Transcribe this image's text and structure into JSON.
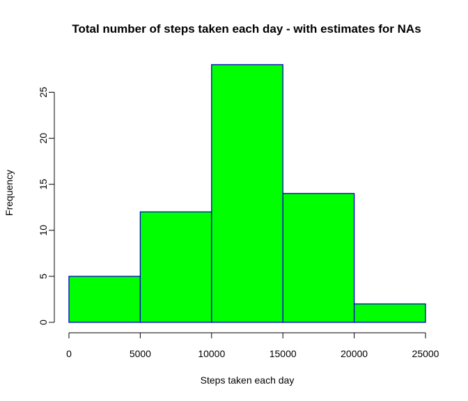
{
  "chart_data": {
    "type": "bar",
    "title": "Total number of steps taken each day - with estimates for NAs",
    "xlabel": "Steps taken each day",
    "ylabel": "Frequency",
    "bins": [
      {
        "from": 0,
        "to": 5000,
        "count": 5
      },
      {
        "from": 5000,
        "to": 10000,
        "count": 12
      },
      {
        "from": 10000,
        "to": 15000,
        "count": 28
      },
      {
        "from": 15000,
        "to": 20000,
        "count": 14
      },
      {
        "from": 20000,
        "to": 25000,
        "count": 2
      }
    ],
    "xlim": [
      0,
      25000
    ],
    "ylim": [
      0,
      28
    ],
    "x_ticks": [
      "0",
      "5000",
      "10000",
      "15000",
      "20000",
      "25000"
    ],
    "y_ticks": [
      "0",
      "5",
      "10",
      "15",
      "20",
      "25"
    ],
    "bar_fill": "#00ff00",
    "bar_stroke": "#0000cd",
    "grid": false,
    "legend": "none"
  }
}
